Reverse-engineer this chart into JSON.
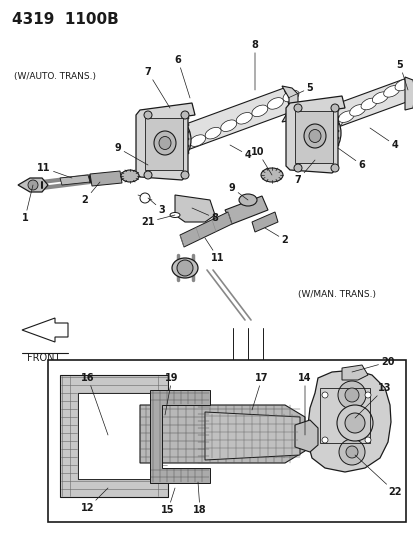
{
  "title": "4319  1100B",
  "bg_color": "#ffffff",
  "line_color": "#1a1a1a",
  "fig_width": 4.14,
  "fig_height": 5.33,
  "dpi": 100,
  "labels": {
    "header": "4319  1100B",
    "auto_trans": "(W/AUTO. TRANS.)",
    "man_trans": "(W/MAN. TRANS.)",
    "front": "FRONT"
  }
}
